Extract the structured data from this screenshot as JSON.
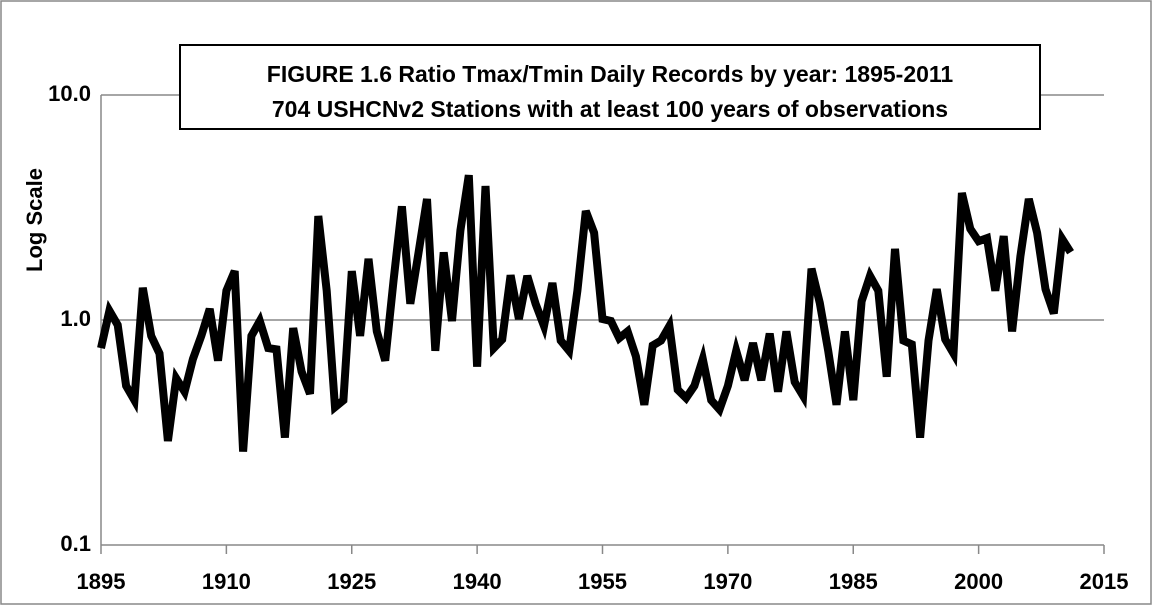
{
  "chart_data": {
    "type": "line",
    "title": "FIGURE 1.6   Ratio Tmax/Tmin  Daily Records by year: 1895-2011",
    "subtitle": "704 USHCNv2 Stations with at least 100 years of observations",
    "y_label": "Log Scale",
    "log_scale": true,
    "grid": true,
    "xlim": [
      1895,
      2015
    ],
    "xticks": [
      1895,
      1910,
      1925,
      1940,
      1955,
      1970,
      1985,
      2000,
      2015
    ],
    "ylim": [
      0.1,
      10
    ],
    "yticks": [
      {
        "value": 0.1,
        "label": "0.1"
      },
      {
        "value": 1,
        "label": "1.0"
      },
      {
        "value": 10,
        "label": "10.0"
      }
    ],
    "x": [
      1895,
      1896,
      1897,
      1898,
      1899,
      1900,
      1901,
      1902,
      1903,
      1904,
      1905,
      1906,
      1907,
      1908,
      1909,
      1910,
      1911,
      1912,
      1913,
      1914,
      1915,
      1916,
      1917,
      1918,
      1919,
      1920,
      1921,
      1922,
      1923,
      1924,
      1925,
      1926,
      1927,
      1928,
      1929,
      1930,
      1931,
      1932,
      1933,
      1934,
      1935,
      1936,
      1937,
      1938,
      1939,
      1940,
      1941,
      1942,
      1943,
      1944,
      1945,
      1946,
      1947,
      1948,
      1949,
      1950,
      1951,
      1952,
      1953,
      1954,
      1955,
      1956,
      1957,
      1958,
      1959,
      1960,
      1961,
      1962,
      1963,
      1964,
      1965,
      1966,
      1967,
      1968,
      1969,
      1970,
      1971,
      1972,
      1973,
      1974,
      1975,
      1976,
      1977,
      1978,
      1979,
      1980,
      1981,
      1982,
      1983,
      1984,
      1985,
      1986,
      1987,
      1988,
      1989,
      1990,
      1991,
      1992,
      1993,
      1994,
      1995,
      1996,
      1997,
      1998,
      1999,
      2000,
      2001,
      2002,
      2003,
      2004,
      2005,
      2006,
      2007,
      2008,
      2009,
      2010,
      2011
    ],
    "series": [
      {
        "name": "Ratio Tmax/Tmin",
        "color": "#000000",
        "values": [
          0.75,
          1.1,
          0.95,
          0.51,
          0.44,
          1.39,
          0.85,
          0.71,
          0.29,
          0.55,
          0.48,
          0.67,
          0.85,
          1.12,
          0.66,
          1.35,
          1.65,
          0.26,
          0.85,
          0.99,
          0.75,
          0.74,
          0.3,
          0.92,
          0.59,
          0.47,
          2.9,
          1.35,
          0.41,
          0.44,
          1.65,
          0.85,
          1.87,
          0.89,
          0.66,
          1.49,
          3.2,
          1.18,
          2.0,
          3.45,
          0.73,
          2.0,
          0.99,
          2.5,
          4.4,
          0.62,
          3.94,
          0.75,
          0.82,
          1.58,
          1.01,
          1.57,
          1.18,
          0.94,
          1.46,
          0.81,
          0.73,
          1.35,
          3.05,
          2.44,
          1.01,
          0.99,
          0.83,
          0.89,
          0.69,
          0.42,
          0.77,
          0.81,
          0.94,
          0.49,
          0.45,
          0.51,
          0.67,
          0.44,
          0.4,
          0.51,
          0.73,
          0.54,
          0.79,
          0.54,
          0.87,
          0.48,
          0.89,
          0.53,
          0.46,
          1.69,
          1.19,
          0.73,
          0.42,
          0.89,
          0.44,
          1.21,
          1.57,
          1.35,
          0.56,
          2.07,
          0.81,
          0.78,
          0.3,
          0.81,
          1.37,
          0.82,
          0.71,
          3.67,
          2.54,
          2.24,
          2.31,
          1.35,
          2.36,
          0.89,
          1.92,
          3.45,
          2.44,
          1.37,
          1.07,
          2.29,
          2.0
        ]
      }
    ]
  }
}
